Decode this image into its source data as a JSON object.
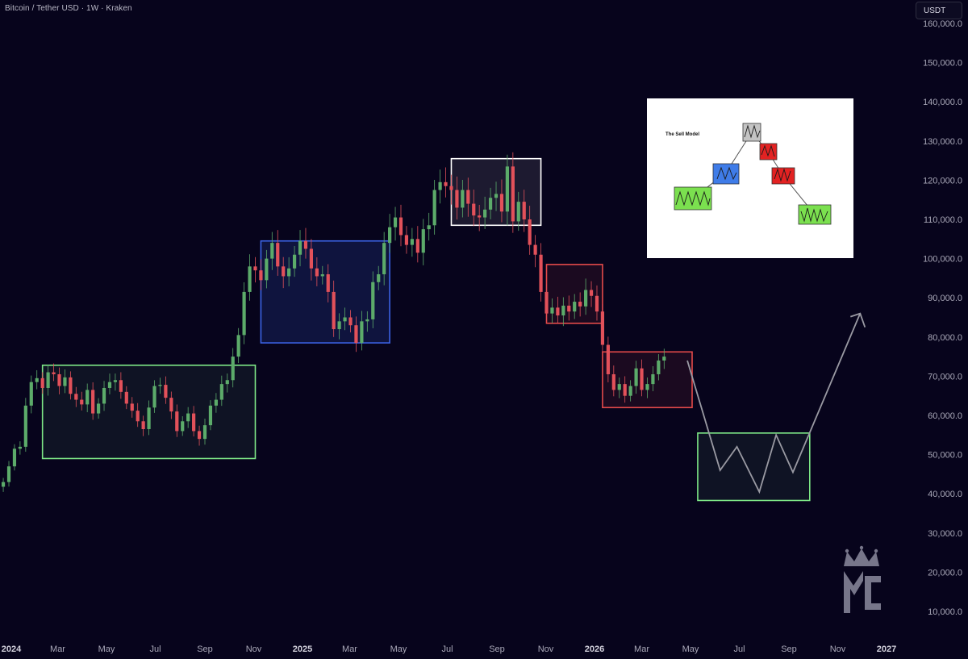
{
  "header": {
    "symbol_title": "Bitcoin / Tether USD · 1W · Kraken",
    "currency_button": "USDT"
  },
  "colors": {
    "background": "#07041c",
    "up": "#5cab6a",
    "down": "#e2515a",
    "range_green": "#7ee887",
    "range_blue": "#3c63e6",
    "range_white": "#ffffff",
    "range_red": "#e44a4a",
    "projection": "#9a9aa3"
  },
  "inset": {
    "title": "The Sell Model"
  },
  "chart_data": {
    "type": "candlestick",
    "title": "Bitcoin / Tether USD · 1W · Kraken",
    "y_axis": {
      "ylim": [
        0,
        162000
      ],
      "ticks": [
        10000,
        20000,
        30000,
        40000,
        50000,
        60000,
        70000,
        80000,
        90000,
        100000,
        110000,
        120000,
        130000,
        140000,
        150000,
        160000
      ],
      "tick_labels": [
        "10,000.0",
        "20,000.0",
        "30,000.0",
        "40,000.0",
        "50,000.0",
        "60,000.0",
        "70,000.0",
        "80,000.0",
        "90,000.0",
        "100,000.0",
        "110,000.0",
        "120,000.0",
        "130,000.0",
        "140,000.0",
        "150,000.0",
        "160,000.0"
      ],
      "side": "right"
    },
    "x_axis": {
      "ticks": [
        {
          "date": "2024-01-01",
          "label": "2024",
          "major": true
        },
        {
          "date": "2024-03-01",
          "label": "Mar"
        },
        {
          "date": "2024-05-01",
          "label": "May"
        },
        {
          "date": "2024-07-01",
          "label": "Jul"
        },
        {
          "date": "2024-09-01",
          "label": "Sep"
        },
        {
          "date": "2024-11-01",
          "label": "Nov"
        },
        {
          "date": "2025-01-01",
          "label": "2025",
          "major": true
        },
        {
          "date": "2025-03-01",
          "label": "Mar"
        },
        {
          "date": "2025-05-01",
          "label": "May"
        },
        {
          "date": "2025-07-01",
          "label": "Jul"
        },
        {
          "date": "2025-09-01",
          "label": "Sep"
        },
        {
          "date": "2025-11-01",
          "label": "Nov"
        },
        {
          "date": "2026-01-01",
          "label": "2026",
          "major": true
        },
        {
          "date": "2026-03-01",
          "label": "Mar"
        },
        {
          "date": "2026-05-01",
          "label": "May"
        },
        {
          "date": "2026-07-01",
          "label": "Jul"
        },
        {
          "date": "2026-09-01",
          "label": "Sep"
        },
        {
          "date": "2026-11-01",
          "label": "Nov"
        },
        {
          "date": "2027-01-01",
          "label": "2027",
          "major": true
        }
      ]
    },
    "closes_weekly": [
      42500,
      42000,
      41800,
      43000,
      47000,
      51500,
      52000,
      62500,
      68500,
      69500,
      67000,
      71000,
      70500,
      67500,
      69700,
      65500,
      64000,
      62800,
      66500,
      60500,
      63000,
      67000,
      68500,
      69000,
      66000,
      63000,
      61200,
      58500,
      56500,
      62000,
      67500,
      67800,
      64500,
      61000,
      56000,
      58500,
      60500,
      56000,
      54000,
      57500,
      62500,
      64000,
      68000,
      69000,
      75000,
      80500,
      91500,
      98000,
      97000,
      94500,
      100000,
      104000,
      98000,
      95500,
      97500,
      101000,
      104500,
      102500,
      97500,
      95500,
      96000,
      91500,
      82000,
      84000,
      85000,
      83000,
      78500,
      84000,
      84500,
      94000,
      96000,
      104000,
      108000,
      110500,
      106000,
      103500,
      105000,
      101500,
      107500,
      108500,
      117500,
      119500,
      118500,
      117500,
      113000,
      117500,
      114000,
      111000,
      110500,
      112500,
      115500,
      116500,
      112000,
      123500,
      109500,
      114500,
      110000,
      103500,
      101000,
      91500,
      86000,
      87500,
      85500,
      88000,
      86500,
      89000,
      87800,
      92000,
      90500,
      86500,
      78000,
      70500,
      66500,
      68000,
      65000,
      67500,
      72000,
      66500,
      68000,
      70500,
      74000,
      75000
    ],
    "projection_path": [
      {
        "date": "2026-04-27",
        "value": 74000
      },
      {
        "date": "2026-06-07",
        "value": 46000
      },
      {
        "date": "2026-06-28",
        "value": 52000
      },
      {
        "date": "2026-07-26",
        "value": 40500
      },
      {
        "date": "2026-08-16",
        "value": 55000
      },
      {
        "date": "2026-09-06",
        "value": 45500
      },
      {
        "date": "2026-11-29",
        "value": 86000
      }
    ],
    "ranges": [
      {
        "color": "green",
        "start": "2024-02-11",
        "end": "2024-11-03",
        "low": 49000,
        "high": 72800
      },
      {
        "color": "blue",
        "start": "2024-11-10",
        "end": "2025-04-20",
        "low": 78500,
        "high": 104500
      },
      {
        "color": "white",
        "start": "2025-07-06",
        "end": "2025-10-26",
        "low": 108500,
        "high": 125500
      },
      {
        "color": "red",
        "start": "2025-11-02",
        "end": "2026-01-11",
        "low": 83500,
        "high": 98500
      },
      {
        "color": "red",
        "start": "2026-01-11",
        "end": "2026-05-03",
        "low": 62000,
        "high": 76200
      },
      {
        "color": "green",
        "start": "2026-05-10",
        "end": "2026-09-27",
        "low": 38300,
        "high": 55500
      }
    ],
    "grid": false,
    "legend": "none"
  }
}
